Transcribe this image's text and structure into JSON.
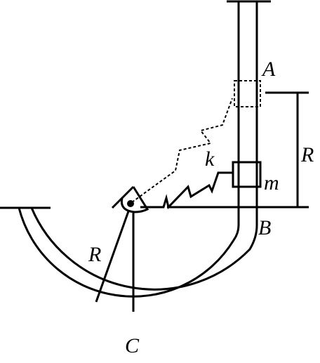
{
  "labels": {
    "A": "A",
    "B": "B",
    "C": "C",
    "R_height": "R",
    "R_radius": "R",
    "k": "k",
    "m": "m"
  },
  "colors": {
    "line": "#000000",
    "background": "#ffffff"
  }
}
